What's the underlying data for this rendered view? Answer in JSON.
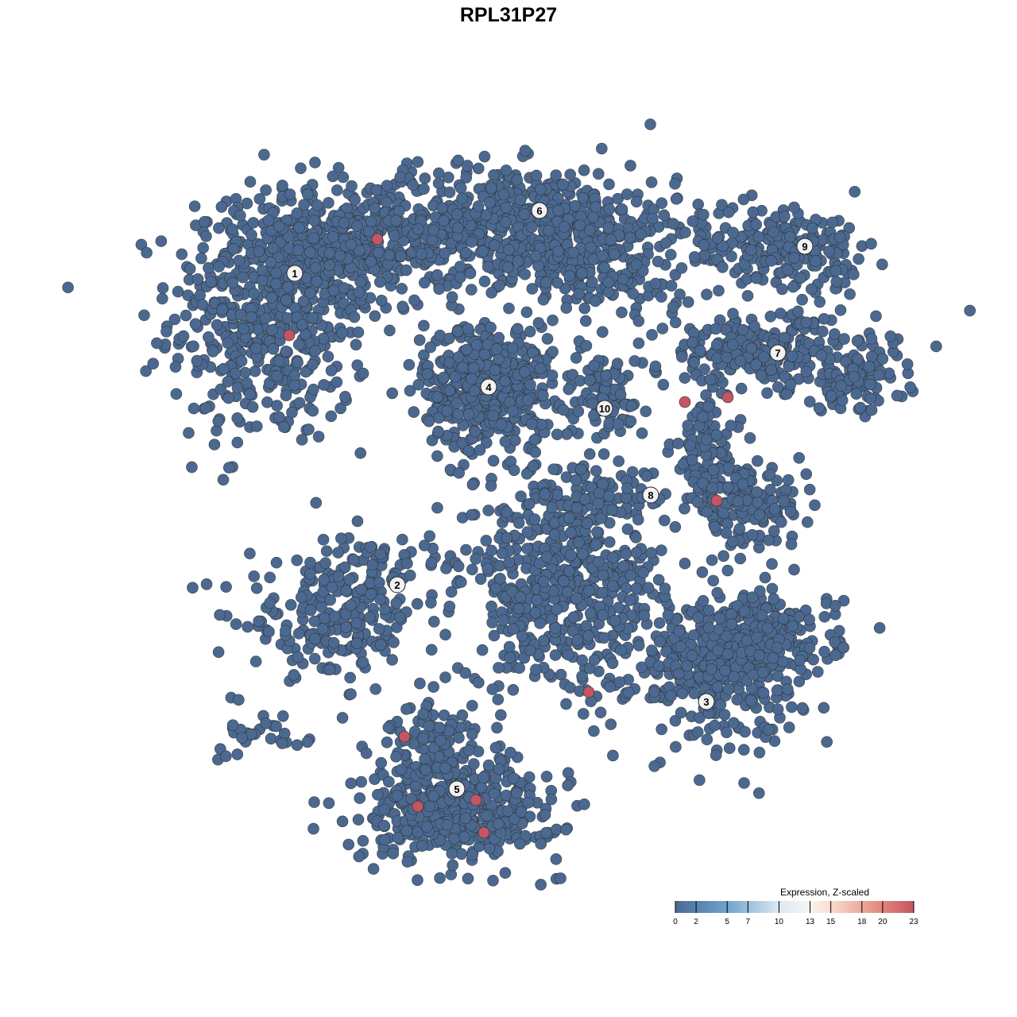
{
  "chart_data": {
    "type": "scatter",
    "title": "RPL31P27",
    "xlabel": "",
    "ylabel": "",
    "axes_visible": false,
    "grid": false,
    "colors": {
      "low": "#4b6990",
      "high": "#c45563",
      "outline": "#2b2b2b"
    },
    "clusters": [
      {
        "label": "1",
        "label_pos": [
          -26.9,
          29.6
        ],
        "blobs": [
          {
            "center": [
              -30,
              24
            ],
            "sd": [
              7,
              9
            ],
            "n": 500
          },
          {
            "center": [
              -21,
              32
            ],
            "sd": [
              8,
              4
            ],
            "n": 320
          }
        ]
      },
      {
        "label": "6",
        "label_pos": [
          3.9,
          37.5
        ],
        "blobs": [
          {
            "center": [
              0,
              36
            ],
            "sd": [
              12,
              4
            ],
            "n": 600
          },
          {
            "center": [
              13,
              30
            ],
            "sd": [
              6,
              4
            ],
            "n": 150
          }
        ]
      },
      {
        "label": "4",
        "label_pos": [
          -2.5,
          15.3
        ],
        "blobs": [
          {
            "center": [
              -2.5,
              15.5
            ],
            "sd": [
              4.5,
              4.5
            ],
            "n": 450
          }
        ]
      },
      {
        "label": "10",
        "label_pos": [
          12.1,
          12.6
        ],
        "blobs": [
          {
            "center": [
              12,
              14
            ],
            "sd": [
              3,
              3
            ],
            "n": 80
          }
        ]
      },
      {
        "label": "9",
        "label_pos": [
          37.3,
          33.0
        ],
        "blobs": [
          {
            "center": [
              33,
              33
            ],
            "sd": [
              6,
              3
            ],
            "n": 150
          },
          {
            "center": [
              40,
              32
            ],
            "sd": [
              3,
              3
            ],
            "n": 50
          }
        ]
      },
      {
        "label": "7",
        "label_pos": [
          33.9,
          19.6
        ],
        "blobs": [
          {
            "center": [
              32,
              20
            ],
            "sd": [
              8,
              2.5
            ],
            "n": 250
          },
          {
            "center": [
              43,
              16
            ],
            "sd": [
              4,
              2
            ],
            "n": 100
          }
        ]
      },
      {
        "label": "8",
        "label_pos": [
          17.9,
          1.7
        ],
        "blobs": [
          {
            "center": [
              25,
              7
            ],
            "sd": [
              2.5,
              4
            ],
            "n": 120
          },
          {
            "center": [
              30,
              0
            ],
            "sd": [
              4,
              2.5
            ],
            "n": 150
          },
          {
            "center": [
              10,
              1.5
            ],
            "sd": [
              6,
              2
            ],
            "n": 100
          }
        ]
      },
      {
        "label": "2",
        "label_pos": [
          -14.0,
          -9.6
        ],
        "blobs": [
          {
            "center": [
              -22,
              -14
            ],
            "sd": [
              6,
              4
            ],
            "n": 200
          },
          {
            "center": [
              -15,
              -7
            ],
            "sd": [
              5,
              2
            ],
            "n": 60
          }
        ]
      },
      {
        "label": "3",
        "label_pos": [
          24.9,
          -24.3
        ],
        "blobs": [
          {
            "center": [
              26,
              -20
            ],
            "sd": [
              6,
              5
            ],
            "n": 350
          },
          {
            "center": [
              33,
              -16
            ],
            "sd": [
              5,
              3
            ],
            "n": 150
          },
          {
            "center": [
              7,
              -10
            ],
            "sd": [
              7,
              7
            ],
            "n": 500
          }
        ]
      },
      {
        "label": "5",
        "label_pos": [
          -6.5,
          -35.3
        ],
        "blobs": [
          {
            "center": [
              -6,
              -38
            ],
            "sd": [
              7,
              3.5
            ],
            "n": 400
          },
          {
            "center": [
              -10,
              -30
            ],
            "sd": [
              3,
              4
            ],
            "n": 120
          },
          {
            "center": [
              -30,
              -28
            ],
            "sd": [
              3,
              2
            ],
            "n": 30
          }
        ]
      }
    ],
    "high_expression_points": [
      {
        "x": -16.5,
        "y": 33.9,
        "value": 23
      },
      {
        "x": -27.6,
        "y": 21.8,
        "value": 23
      },
      {
        "x": 22.2,
        "y": 13.4,
        "value": 23
      },
      {
        "x": 27.6,
        "y": 14.0,
        "value": 23
      },
      {
        "x": 26.2,
        "y": 1.0,
        "value": 23
      },
      {
        "x": 10.1,
        "y": -23.1,
        "value": 23
      },
      {
        "x": -13.1,
        "y": -28.7,
        "value": 23
      },
      {
        "x": -4.1,
        "y": -36.7,
        "value": 23
      },
      {
        "x": -11.4,
        "y": -37.5,
        "value": 23
      },
      {
        "x": -3.1,
        "y": -40.8,
        "value": 23
      }
    ],
    "legend": {
      "title": "Expression, Z-scaled",
      "placement": "bottom-right",
      "range": [
        0,
        23
      ],
      "ticks": [
        0,
        2,
        5,
        7,
        10,
        13,
        15,
        18,
        20,
        23
      ],
      "tick_labels": [
        "0",
        "2",
        "5",
        "7",
        "10",
        "13",
        "15",
        "18",
        "20",
        "23"
      ],
      "gradient": [
        {
          "value": 0,
          "color": "#4a6a94"
        },
        {
          "value": 5,
          "color": "#6fa3cc"
        },
        {
          "value": 10,
          "color": "#dce9f2"
        },
        {
          "value": 13,
          "color": "#f7f5f2"
        },
        {
          "value": 15,
          "color": "#fadccd"
        },
        {
          "value": 20,
          "color": "#e0867a"
        },
        {
          "value": 23,
          "color": "#c45563"
        }
      ]
    }
  }
}
